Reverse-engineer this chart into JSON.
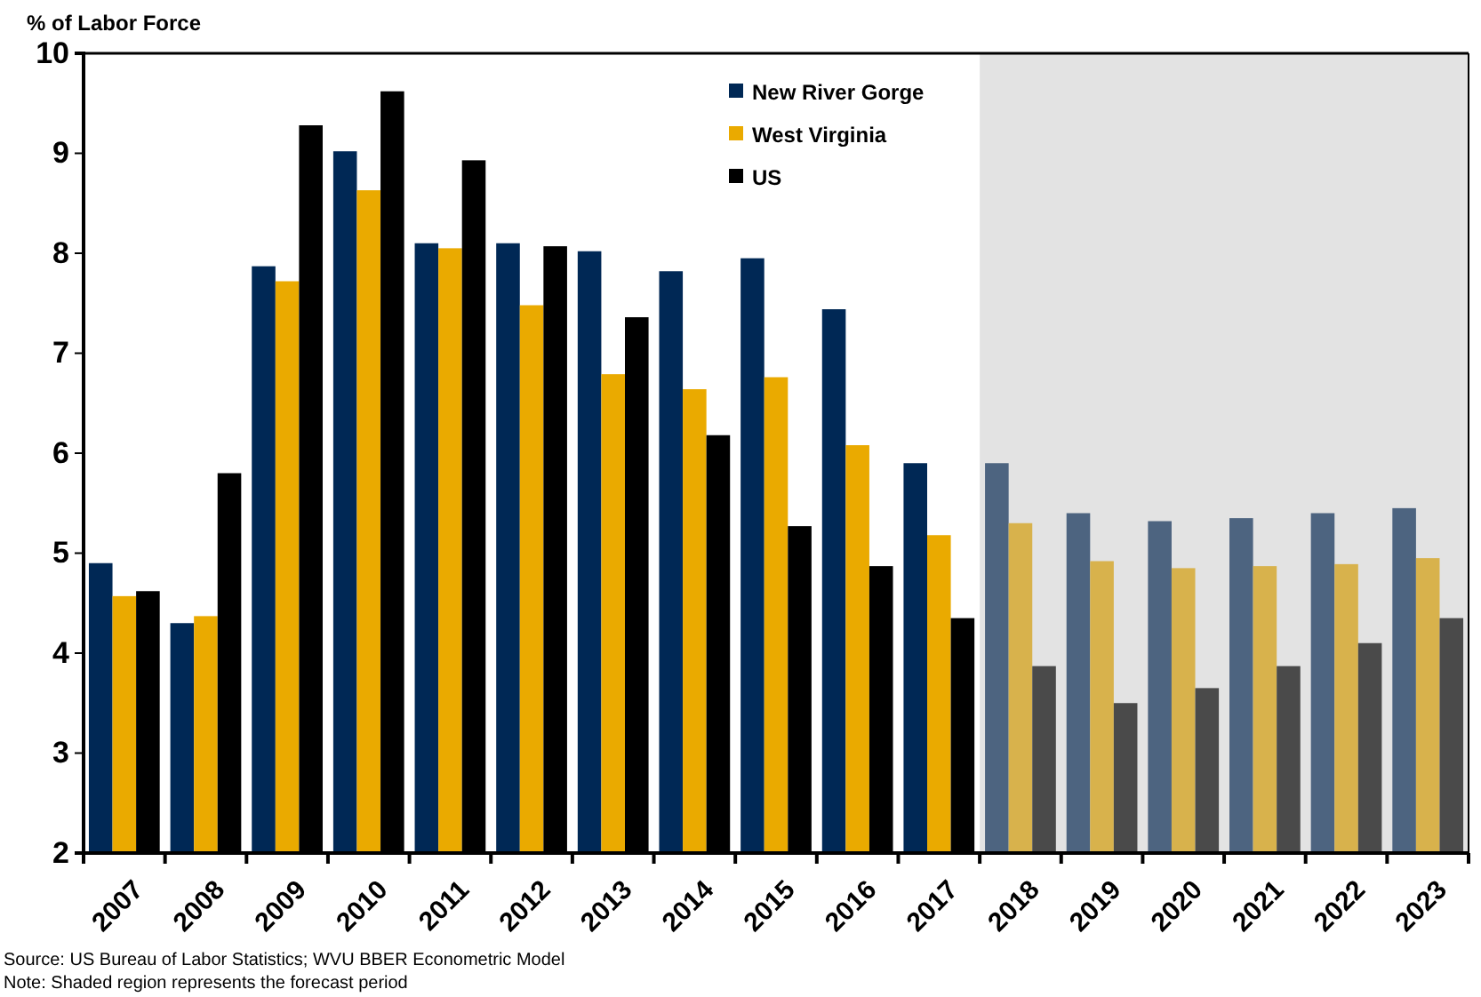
{
  "chart_data": {
    "type": "bar",
    "ylabel": "% of Labor Force",
    "categories": [
      "2007",
      "2008",
      "2009",
      "2010",
      "2011",
      "2012",
      "2013",
      "2014",
      "2015",
      "2016",
      "2017",
      "2018",
      "2019",
      "2020",
      "2021",
      "2022",
      "2023"
    ],
    "series": [
      {
        "name": "New River Gorge",
        "color": "#002855",
        "colors": [
          "#002855",
          "#002855",
          "#002855",
          "#002855",
          "#002855",
          "#002855",
          "#002855",
          "#002855",
          "#002855",
          "#002855",
          "#002855",
          "#4d6480",
          "#4d6480",
          "#4d6480",
          "#4d6480",
          "#4d6480",
          "#4d6480"
        ],
        "values": [
          4.9,
          4.3,
          7.87,
          9.02,
          8.1,
          8.1,
          8.02,
          7.82,
          7.95,
          7.44,
          5.9,
          5.9,
          5.4,
          5.32,
          5.35,
          5.4,
          5.45
        ]
      },
      {
        "name": "West Virginia",
        "color": "#eaaa00",
        "colors": [
          "#eaaa00",
          "#eaaa00",
          "#eaaa00",
          "#eaaa00",
          "#eaaa00",
          "#eaaa00",
          "#eaaa00",
          "#eaaa00",
          "#eaaa00",
          "#eaaa00",
          "#eaaa00",
          "#d8b24c",
          "#d8b24c",
          "#d8b24c",
          "#d8b24c",
          "#d8b24c",
          "#d8b24c"
        ],
        "values": [
          4.57,
          4.37,
          7.72,
          8.63,
          8.05,
          7.48,
          6.79,
          6.64,
          6.76,
          6.08,
          5.18,
          5.3,
          4.92,
          4.85,
          4.87,
          4.89,
          4.95
        ]
      },
      {
        "name": "US",
        "color": "#000000",
        "colors": [
          "#000000",
          "#000000",
          "#000000",
          "#000000",
          "#000000",
          "#000000",
          "#000000",
          "#000000",
          "#000000",
          "#000000",
          "#000000",
          "#4a4a4a",
          "#4a4a4a",
          "#4a4a4a",
          "#4a4a4a",
          "#4a4a4a",
          "#4a4a4a"
        ],
        "values": [
          4.62,
          5.8,
          9.28,
          9.62,
          8.93,
          8.07,
          7.36,
          6.18,
          5.27,
          4.87,
          4.35,
          3.87,
          3.5,
          3.65,
          3.87,
          4.1,
          4.35
        ]
      }
    ],
    "ylim": [
      2,
      10
    ],
    "yticks": [
      2,
      3,
      4,
      5,
      6,
      7,
      8,
      9,
      10
    ],
    "grid": false,
    "legend": "top",
    "bands": [
      {
        "axis": "x",
        "from": "2018",
        "to": "2023",
        "color": "#e3e3e3"
      }
    ],
    "annotations": [
      "Source: US Bureau of Labor Statistics; WVU BBER Econometric Model",
      "Note: Shaded region represents the forecast period"
    ]
  }
}
